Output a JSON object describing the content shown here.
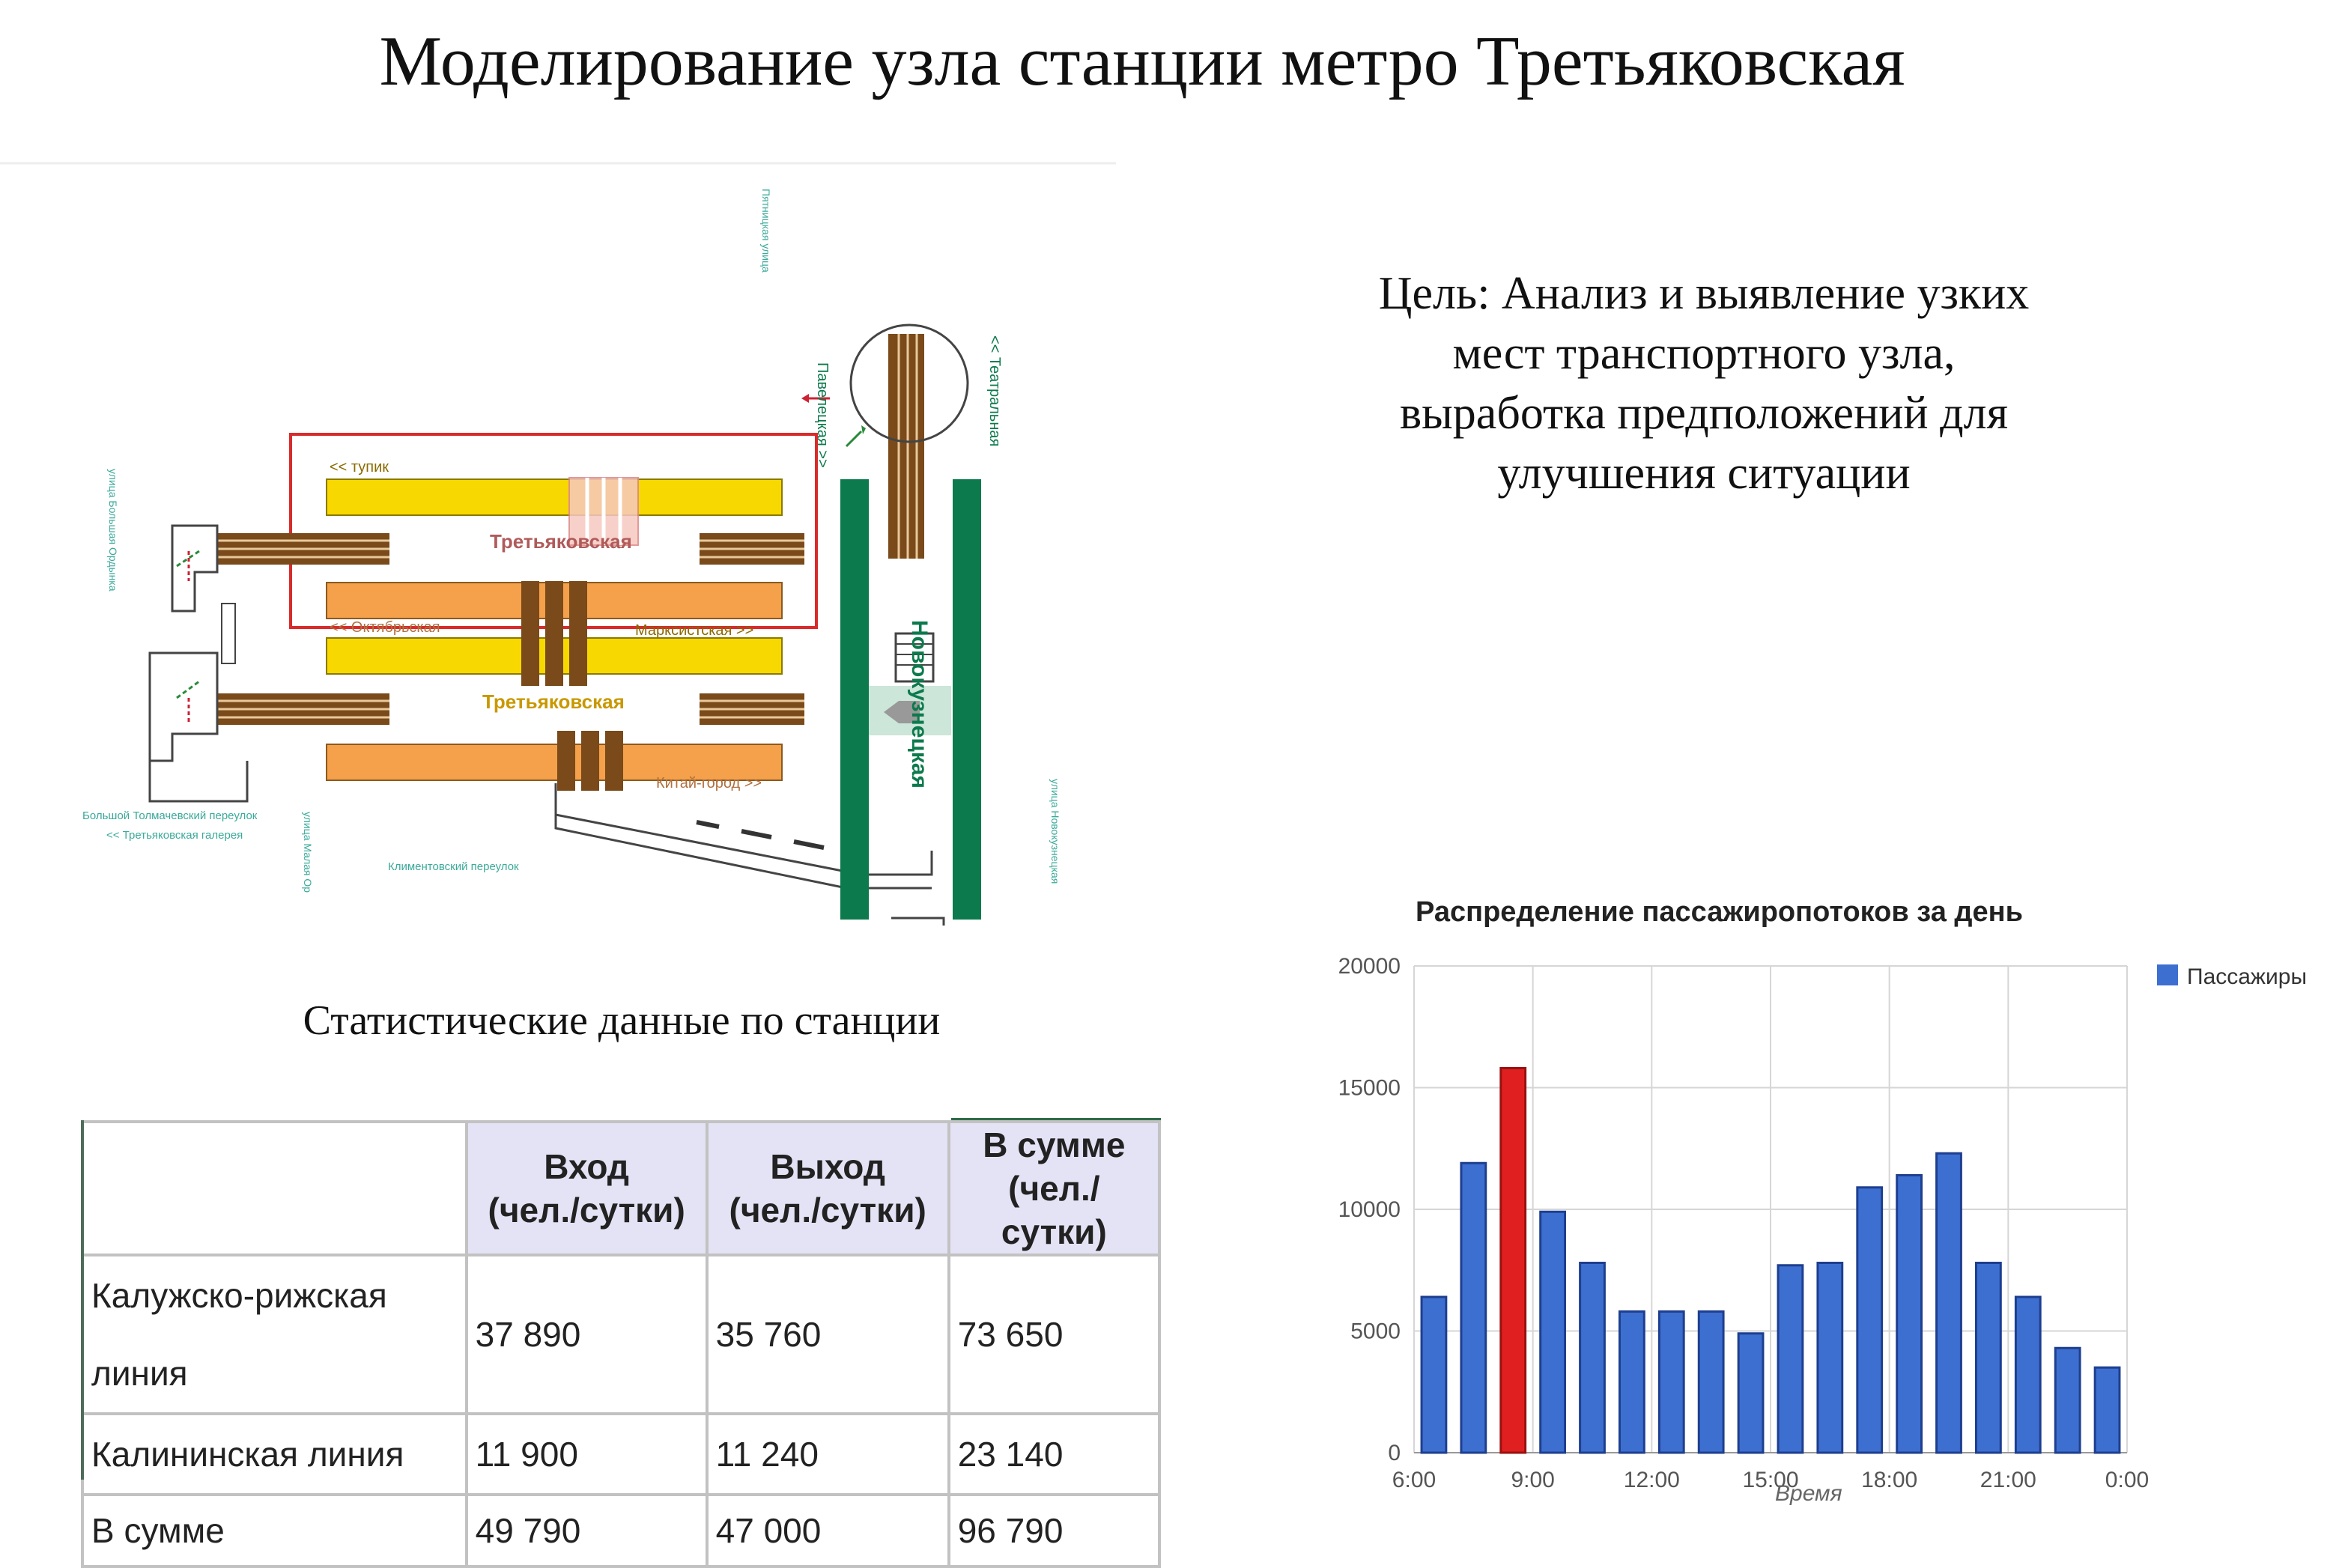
{
  "title": "Моделирование узла станции метро Третьяковская",
  "goal": {
    "lines": [
      "Цель: Анализ и выявление узких",
      "мест транспортного узла,",
      "выработка предположений для",
      "улучшения ситуации"
    ]
  },
  "scheme": {
    "station_top": "Третьяковская",
    "station_bottom": "Третьяковская",
    "station_right": "Новокузнецкая",
    "dir_tupik": "<< тупик",
    "dir_oktyabrskaya": "<< Октябрьская",
    "dir_marksistskaya": "Марксистская >>",
    "dir_kitai_gorod": "Китай-город >>",
    "dir_paveletskaya": "Павелецкая >>",
    "dir_teatralnaya": "<< Театральная",
    "street_pyatnitskaya": "Пятницкая улица",
    "street_bolshaya_ordynka": "улица Большая Ордынка",
    "street_tolmachevsky": "Большой Толмачевский переулок",
    "gallery": "<< Третьяковская галерея",
    "street_malaya_ordynka": "улица Малая Ор",
    "street_klimentovsky": "Климентовский переулок",
    "street_novokuznetskaya": "улица Новокузнецкая"
  },
  "stats": {
    "caption": "Статистические данные по станции",
    "headers": [
      "Вход\n(чел./сутки)",
      "Выход\n(чел./сутки)",
      "В сумме\n(чел./сутки)"
    ],
    "rows": [
      {
        "label": "Калужско-рижская линия",
        "in": "37 890",
        "out": "35 760",
        "sum": "73 650"
      },
      {
        "label": "Калининская линия",
        "in": "11 900",
        "out": "11 240",
        "sum": "23 140"
      },
      {
        "label": "В сумме",
        "in": "49 790",
        "out": "47 000",
        "sum": "96 790"
      }
    ]
  },
  "chart_data": {
    "type": "bar",
    "title": "Распределение пассажиропотоков за день",
    "xlabel": "Время",
    "ylabel": "",
    "ylim": [
      0,
      20000
    ],
    "yticks": [
      "0",
      "5000",
      "10000",
      "15000",
      "20000"
    ],
    "xticks": [
      "6:00",
      "9:00",
      "12:00",
      "15:00",
      "18:00",
      "21:00",
      "0:00"
    ],
    "xlim_hours": [
      6,
      24
    ],
    "legend": "Пассажиры",
    "legend_position": "top-right",
    "grid": true,
    "series": [
      {
        "name": "Пассажиры",
        "hours": [
          6.5,
          7.5,
          8.5,
          9.5,
          10.5,
          11.5,
          12.5,
          13.5,
          14.5,
          15.5,
          16.5,
          17.5,
          18.5,
          19.5,
          20.5,
          21.5,
          22.5,
          23.5
        ],
        "values": [
          6400,
          11900,
          15800,
          9900,
          7800,
          5800,
          5800,
          5800,
          4900,
          7700,
          7800,
          10900,
          11400,
          12300,
          7800,
          6400,
          4300,
          3500
        ],
        "highlight_index": 2
      }
    ],
    "colors": {
      "bar": "#3d6fd1",
      "bar_edge": "#1e3f8f",
      "highlight": "#e02020",
      "highlight_edge": "#9a1010"
    }
  }
}
